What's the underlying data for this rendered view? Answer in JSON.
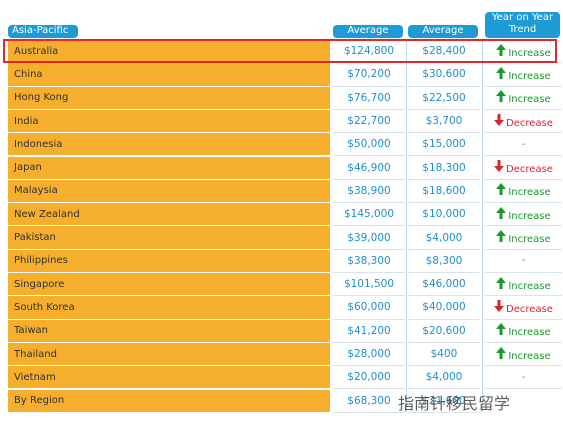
{
  "table": {
    "header": [
      "Asia-Pacific",
      "Average Salary",
      "Average Bonus",
      "Year on Year Trend"
    ],
    "rows": [
      [
        "Australia",
        "$124,800",
        "$28,400",
        "Increase"
      ],
      [
        "China",
        "$70,200",
        "$30,600",
        "Increase"
      ],
      [
        "Hong Kong",
        "$76,700",
        "$22,500",
        "Increase"
      ],
      [
        "India",
        "$22,700",
        "$3,700",
        "Decrease"
      ],
      [
        "Indonesia",
        "$50,000",
        "$15,000",
        "-"
      ],
      [
        "Japan",
        "$46,900",
        "$18,300",
        "Decrease"
      ],
      [
        "Malaysia",
        "$38,900",
        "$18,600",
        "Increase"
      ],
      [
        "New Zealand",
        "$145,000",
        "$10,000",
        "Increase"
      ],
      [
        "Pakistan",
        "$39,000",
        "$4,000",
        "Increase"
      ],
      [
        "Philippines",
        "$38,300",
        "$8,300",
        "-"
      ],
      [
        "Singapore",
        "$101,500",
        "$46,000",
        "Increase"
      ],
      [
        "South Korea",
        "$60,000",
        "$40,000",
        "Decrease"
      ],
      [
        "Taiwan",
        "$41,200",
        "$20,600",
        "Increase"
      ],
      [
        "Thailand",
        "$28,000",
        "$400",
        "Increase"
      ],
      [
        "Vietnam",
        "$20,000",
        "$4,000",
        "-"
      ],
      [
        "By Region",
        "$68,300",
        "$21,600"
      ]
    ]
  },
  "watermark": "指南针移民留学"
}
